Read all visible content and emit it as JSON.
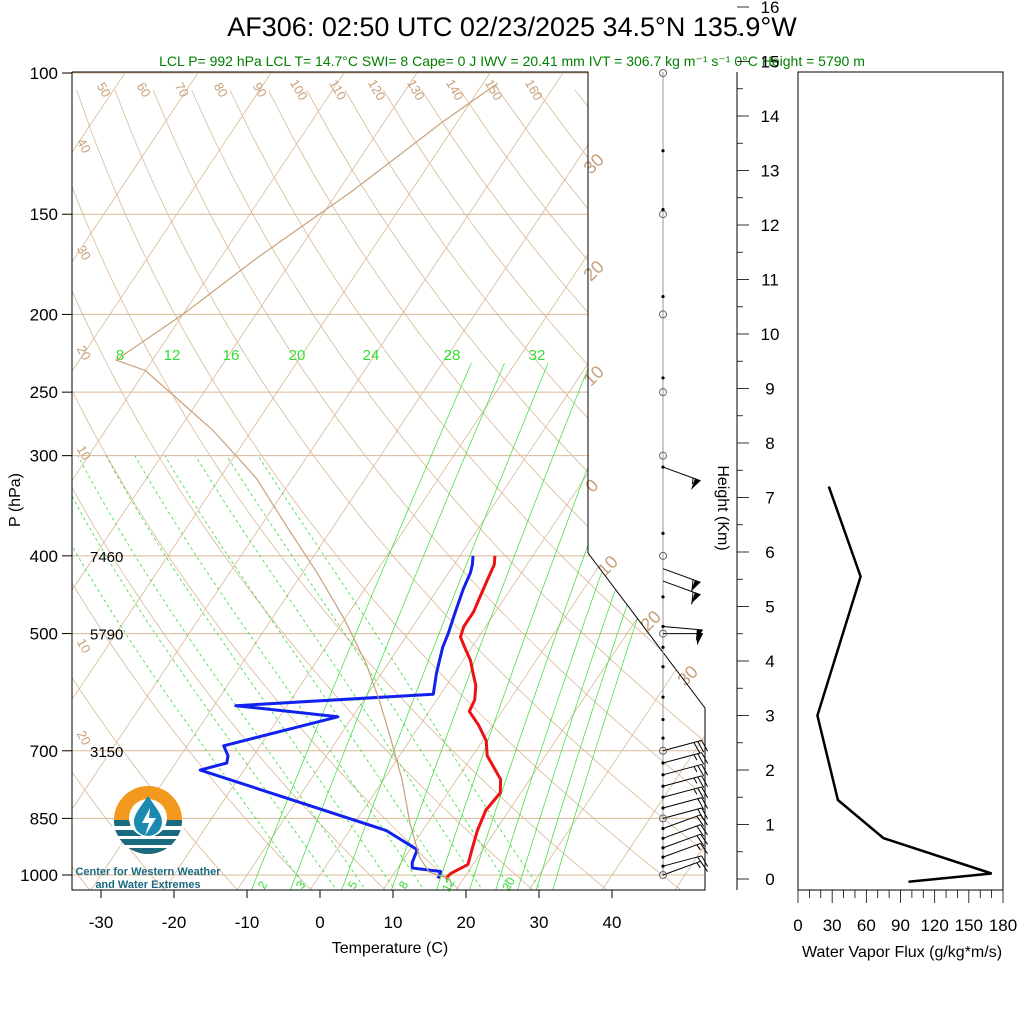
{
  "header": {
    "title": "AF306: 02:50 UTC 02/23/2025  34.5°N 135.9°W",
    "stats": "LCL P= 992 hPa  LCL T= 14.7°C  SWI= 8  Cape= 0 J  IWV = 20.41 mm  IVT = 306.7 kg m⁻¹ s⁻¹  0°C Height = 5790 m"
  },
  "colors": {
    "temperature": "#ee1111",
    "dewpoint": "#1122ee",
    "parcel": "#c8a07a",
    "background_lines": "#d9b896",
    "mixing_ratio": "#33dd33",
    "text_green": "#008000"
  },
  "logo": {
    "line1": "Center for Western Weather",
    "line2": "and Water Extremes",
    "icon": "water-drop-globe-icon"
  },
  "chart_data": [
    {
      "type": "line",
      "subtype": "skew-t",
      "x_axis": {
        "label": "Temperature (C)",
        "ticks": [
          -30,
          -20,
          -10,
          0,
          10,
          20,
          30,
          40
        ]
      },
      "y_axis": {
        "label": "P (hPa)",
        "scale": "log",
        "ticks": [
          100,
          150,
          200,
          250,
          300,
          400,
          500,
          700,
          850,
          1000
        ]
      },
      "height_labels": [
        {
          "p": 400,
          "text": "7460"
        },
        {
          "p": 500,
          "text": "5790"
        },
        {
          "p": 700,
          "text": "3150"
        }
      ],
      "mixing_ratio_labels": [
        "8",
        "12",
        "16",
        "20",
        "24",
        "28",
        "32"
      ],
      "mixing_ratio_labels_bottom": [
        "2",
        "3",
        "5",
        "8",
        "12",
        "20"
      ],
      "dry_adiabat_labels": [
        "50",
        "60",
        "70",
        "80",
        "90",
        "100",
        "110",
        "120",
        "130",
        "140",
        "150",
        "160"
      ],
      "isotherm_labels": [
        "30",
        "20",
        "10",
        "0",
        "10",
        "20",
        "30"
      ],
      "left_labels": [
        "40",
        "30",
        "20",
        "10",
        "10",
        "20"
      ],
      "series": [
        {
          "name": "Temperature",
          "points": [
            [
              17.5,
              1010
            ],
            [
              17.8,
              995
            ],
            [
              19.3,
              970
            ],
            [
              18.5,
              930
            ],
            [
              17.5,
              880
            ],
            [
              16.8,
              830
            ],
            [
              17.2,
              790
            ],
            [
              16.0,
              760
            ],
            [
              12.0,
              710
            ],
            [
              10.5,
              680
            ],
            [
              8.0,
              650
            ],
            [
              5.5,
              625
            ],
            [
              5.2,
              605
            ],
            [
              4.0,
              580
            ],
            [
              2.5,
              560
            ],
            [
              1.0,
              540
            ],
            [
              -1.0,
              520
            ],
            [
              -2.5,
              505
            ],
            [
              -3.0,
              490
            ],
            [
              -3.0,
              470
            ],
            [
              -3.5,
              450
            ],
            [
              -4.0,
              430
            ],
            [
              -4.5,
              410
            ],
            [
              -5.2,
              400
            ]
          ]
        },
        {
          "name": "Dewpoint",
          "points": [
            [
              16.5,
              1010
            ],
            [
              16.2,
              990
            ],
            [
              12.0,
              980
            ],
            [
              11.5,
              965
            ],
            [
              11.0,
              930
            ],
            [
              5.0,
              880
            ],
            [
              -12.0,
              800
            ],
            [
              -26.0,
              740
            ],
            [
              -23.0,
              725
            ],
            [
              -23.5,
              710
            ],
            [
              -25.0,
              690
            ],
            [
              -12.0,
              635
            ],
            [
              -27.0,
              615
            ],
            [
              -1.0,
              595
            ],
            [
              -2.5,
              560
            ],
            [
              -4.0,
              520
            ],
            [
              -4.5,
              500
            ],
            [
              -5.5,
              470
            ],
            [
              -6.5,
              440
            ],
            [
              -7.0,
              420
            ],
            [
              -7.5,
              410
            ],
            [
              -8.2,
              400
            ]
          ]
        },
        {
          "name": "Parcel",
          "points": [
            [
              18.0,
              1010
            ],
            [
              14.7,
              992
            ],
            [
              12.0,
              950
            ],
            [
              7.5,
              860
            ],
            [
              2.5,
              760
            ],
            [
              -2.5,
              680
            ],
            [
              -7.5,
              610
            ],
            [
              -13.0,
              545
            ],
            [
              -20.0,
              480
            ],
            [
              -28.0,
              420
            ],
            [
              -36.0,
              370
            ],
            [
              -45.0,
              320
            ],
            [
              -55.0,
              280
            ],
            [
              -63.0,
              255
            ],
            [
              -70.0,
              235
            ],
            [
              -75.0,
              228
            ],
            [
              -70.0,
              200
            ],
            [
              -65.0,
              170
            ],
            [
              -58.0,
              140
            ],
            [
              -52.0,
              115
            ],
            [
              -48.0,
              103
            ]
          ]
        }
      ],
      "wind_barbs": [
        {
          "p": 1000,
          "speed": 15,
          "dir": 250
        },
        {
          "p": 975,
          "speed": 15,
          "dir": 255
        },
        {
          "p": 950,
          "speed": 15,
          "dir": 250
        },
        {
          "p": 925,
          "speed": 20,
          "dir": 250
        },
        {
          "p": 900,
          "speed": 20,
          "dir": 250
        },
        {
          "p": 875,
          "speed": 20,
          "dir": 250
        },
        {
          "p": 850,
          "speed": 20,
          "dir": 255
        },
        {
          "p": 825,
          "speed": 20,
          "dir": 255
        },
        {
          "p": 800,
          "speed": 25,
          "dir": 255
        },
        {
          "p": 775,
          "speed": 25,
          "dir": 255
        },
        {
          "p": 750,
          "speed": 25,
          "dir": 255
        },
        {
          "p": 725,
          "speed": 25,
          "dir": 255
        },
        {
          "p": 700,
          "speed": 30,
          "dir": 255
        },
        {
          "p": 500,
          "speed": 50,
          "dir": 270
        },
        {
          "p": 490,
          "speed": 50,
          "dir": 275
        },
        {
          "p": 430,
          "speed": 60,
          "dir": 290
        },
        {
          "p": 415,
          "speed": 60,
          "dir": 290
        },
        {
          "p": 310,
          "speed": 55,
          "dir": 290
        }
      ]
    },
    {
      "type": "line",
      "x_axis": {
        "label": "Water Vapor Flux (g/kg*m/s)",
        "ticks": [
          0,
          30,
          60,
          90,
          120,
          150,
          180
        ],
        "range": [
          0,
          180
        ]
      },
      "y_axis": {
        "label": "Height (Km)",
        "ticks": [
          0,
          1,
          2,
          3,
          4,
          5,
          6,
          7,
          8,
          9,
          10,
          11,
          12,
          13,
          14,
          15,
          16
        ],
        "range": [
          0,
          16.4
        ]
      },
      "series": [
        {
          "name": "Water Vapor Flux",
          "points": [
            [
              97,
              -0.05
            ],
            [
              170,
              0.1
            ],
            [
              75,
              0.75
            ],
            [
              35,
              1.45
            ],
            [
              17,
              3.0
            ],
            [
              55,
              5.55
            ],
            [
              27,
              7.2
            ]
          ]
        }
      ]
    }
  ]
}
